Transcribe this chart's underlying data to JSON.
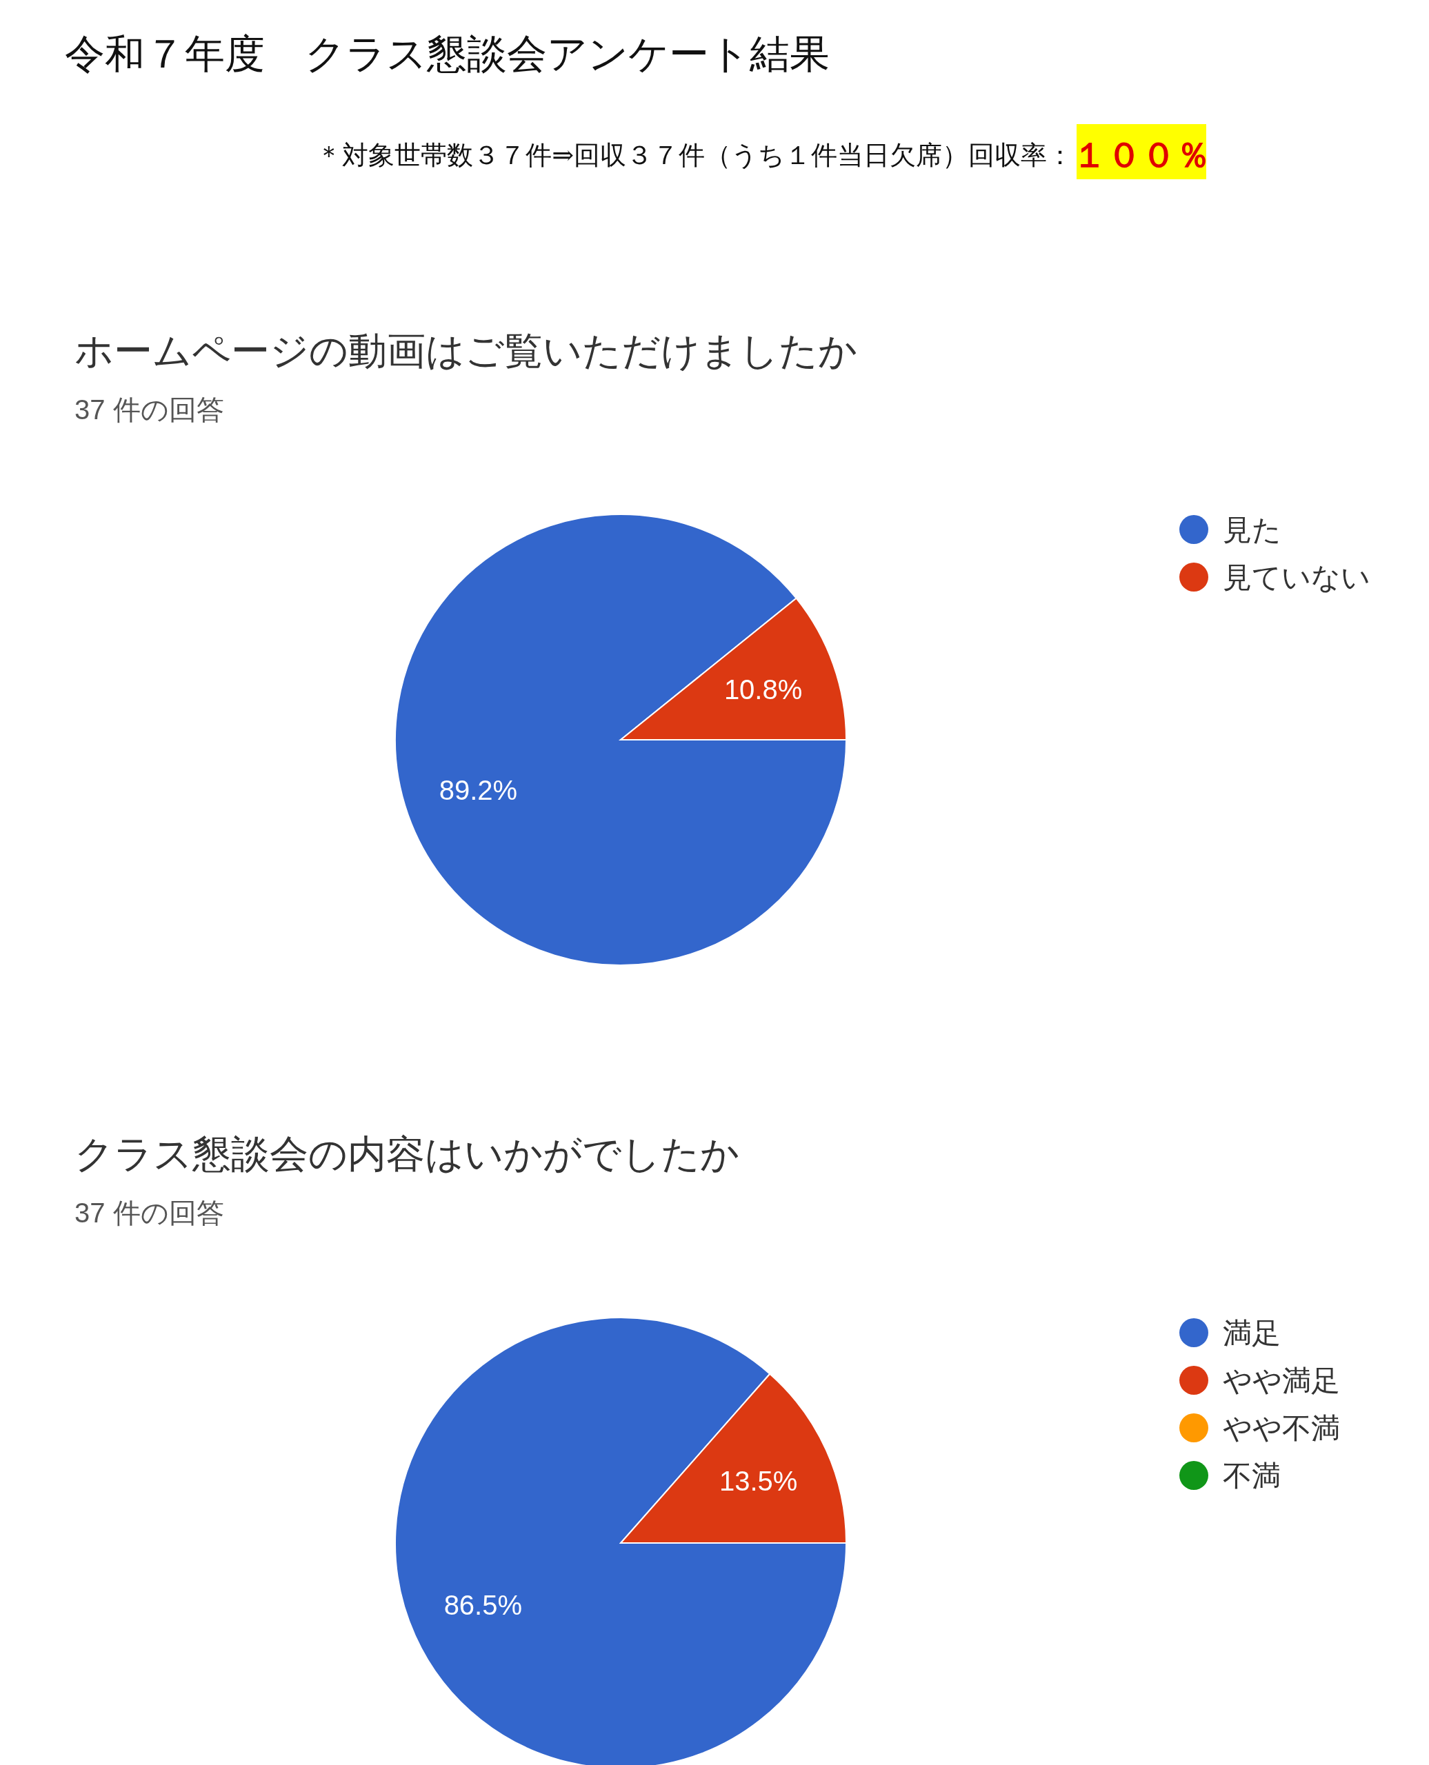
{
  "chart_data": [
    {
      "type": "other",
      "title": "令和７年度　クラス懇談会アンケート結果",
      "annotations": [
        "＊対象世帯数３７件⇒回収３７件（うち１件当日欠席）回収率：",
        "１００％"
      ]
    },
    {
      "type": "pie",
      "title": "ホームページの動画はご覧いただけましたか",
      "subtitle": "37 件の回答",
      "categories": [
        "見た",
        "見ていない"
      ],
      "values": [
        89.2,
        10.8
      ],
      "colors": [
        "#3366cc",
        "#dc3912"
      ],
      "value_labels": [
        "89.2%",
        "10.8%"
      ],
      "legend": "right"
    },
    {
      "type": "pie",
      "title": "クラス懇談会の内容はいかがでしたか",
      "subtitle": "37 件の回答",
      "categories": [
        "満足",
        "やや満足",
        "やや不満",
        "不満"
      ],
      "values": [
        86.5,
        13.5,
        0,
        0
      ],
      "colors": [
        "#3366cc",
        "#dc3912",
        "#ff9900",
        "#109618"
      ],
      "value_labels": [
        "86.5%",
        "13.5%",
        null,
        null
      ],
      "legend": "right"
    }
  ]
}
